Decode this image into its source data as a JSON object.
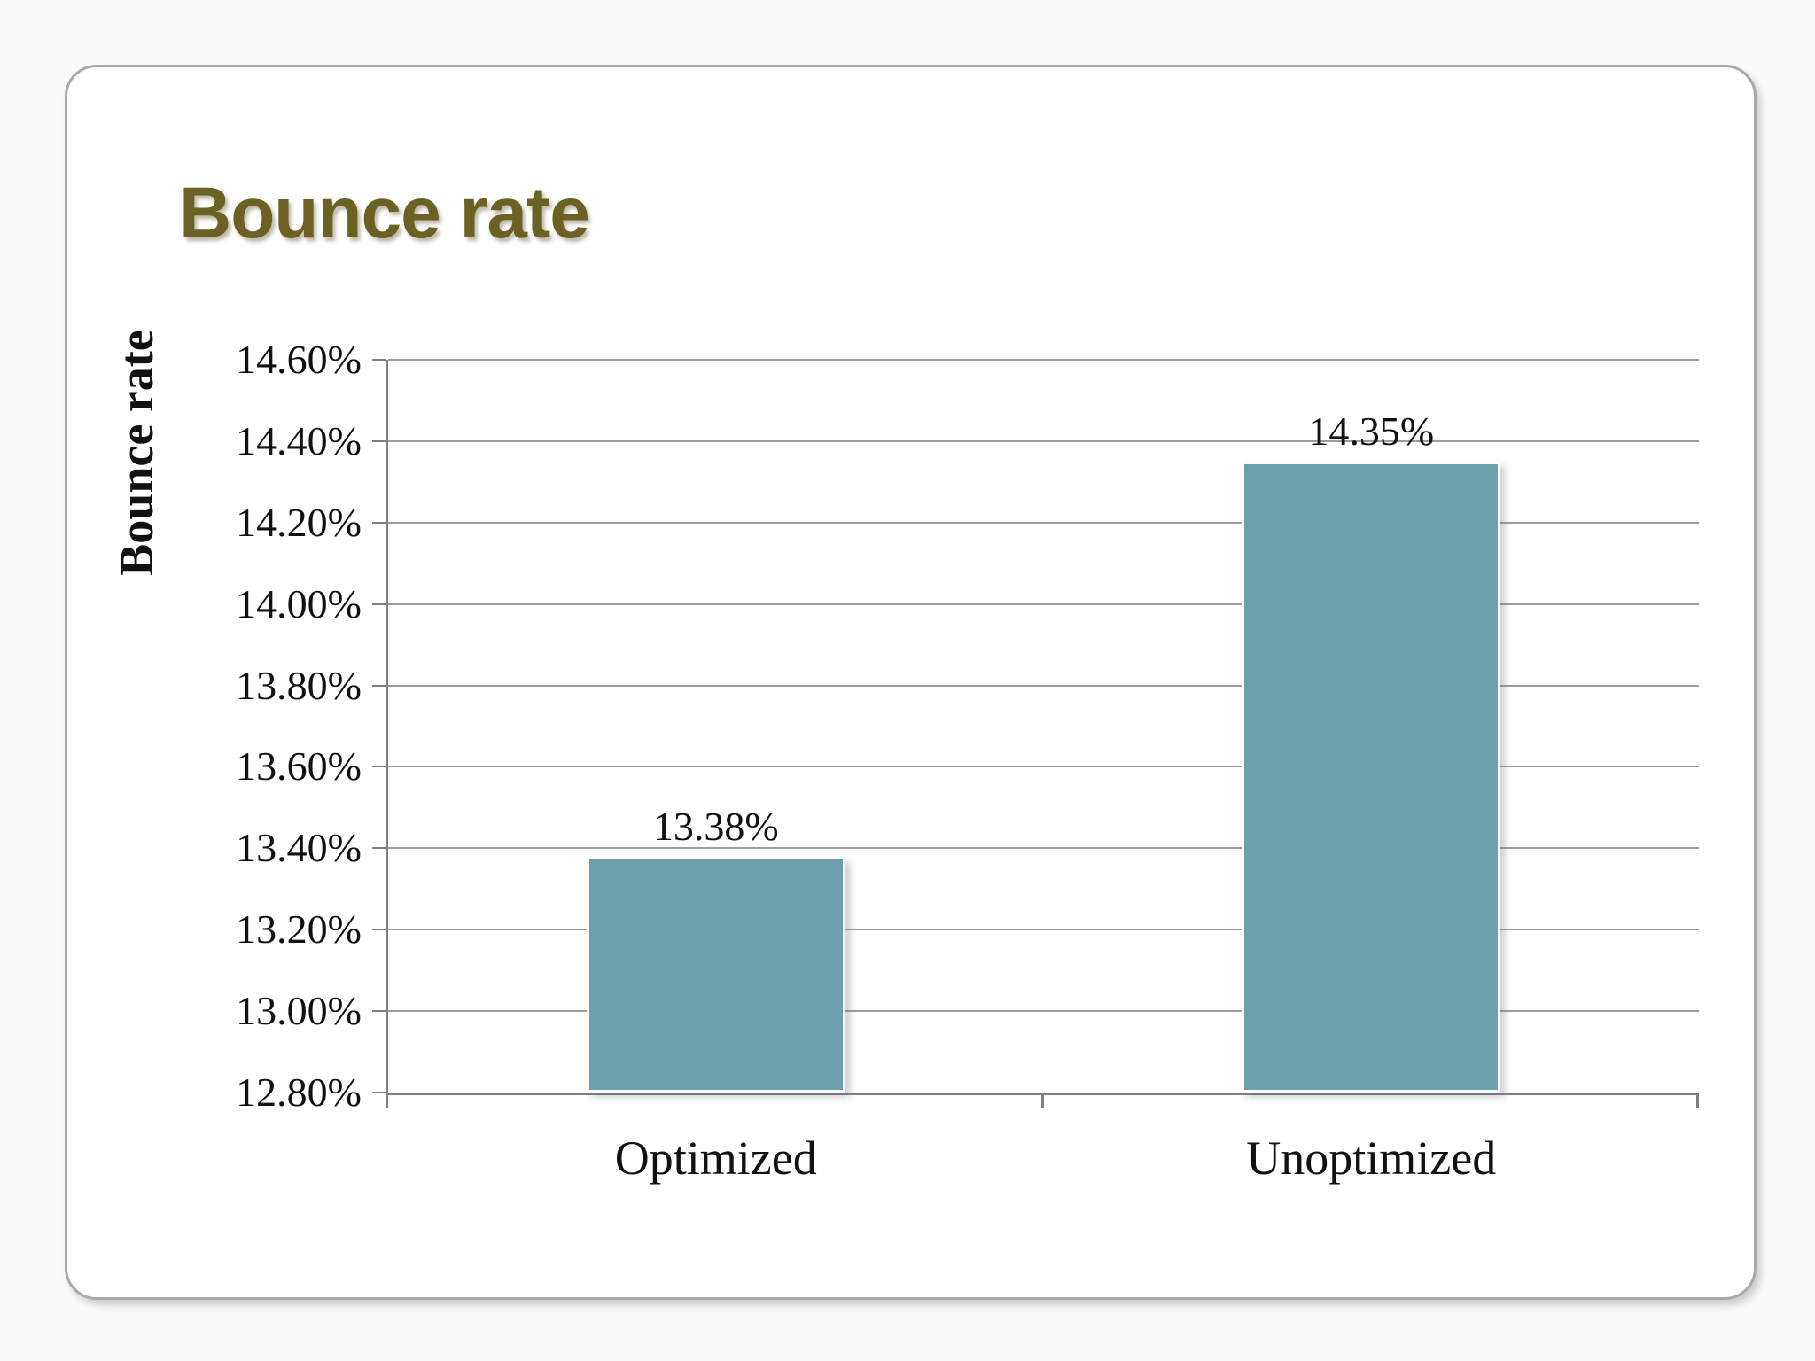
{
  "slide": {
    "title": "Bounce rate"
  },
  "colors": {
    "title_text": "#6b6122",
    "bar_fill": "#6ba0ac",
    "gridline": "#9c9c9c",
    "axis_line": "#7f7f7f",
    "card_border": "#a9a9a9",
    "chart_text": "#111111"
  },
  "chart_data": {
    "type": "bar",
    "title": "Bounce rate",
    "categories": [
      "Optimized",
      "Unoptimized"
    ],
    "values": [
      13.38,
      14.35
    ],
    "value_labels": [
      "13.38%",
      "14.35%"
    ],
    "xlabel": "",
    "ylabel": "Bounce rate",
    "ylim": [
      12.8,
      14.6
    ],
    "ytick_step": 0.2,
    "ytick_labels": [
      "12.80%",
      "13.00%",
      "13.20%",
      "13.40%",
      "13.60%",
      "13.80%",
      "14.00%",
      "14.20%",
      "14.40%",
      "14.60%"
    ],
    "grid": "horizontal",
    "legend": "none"
  }
}
